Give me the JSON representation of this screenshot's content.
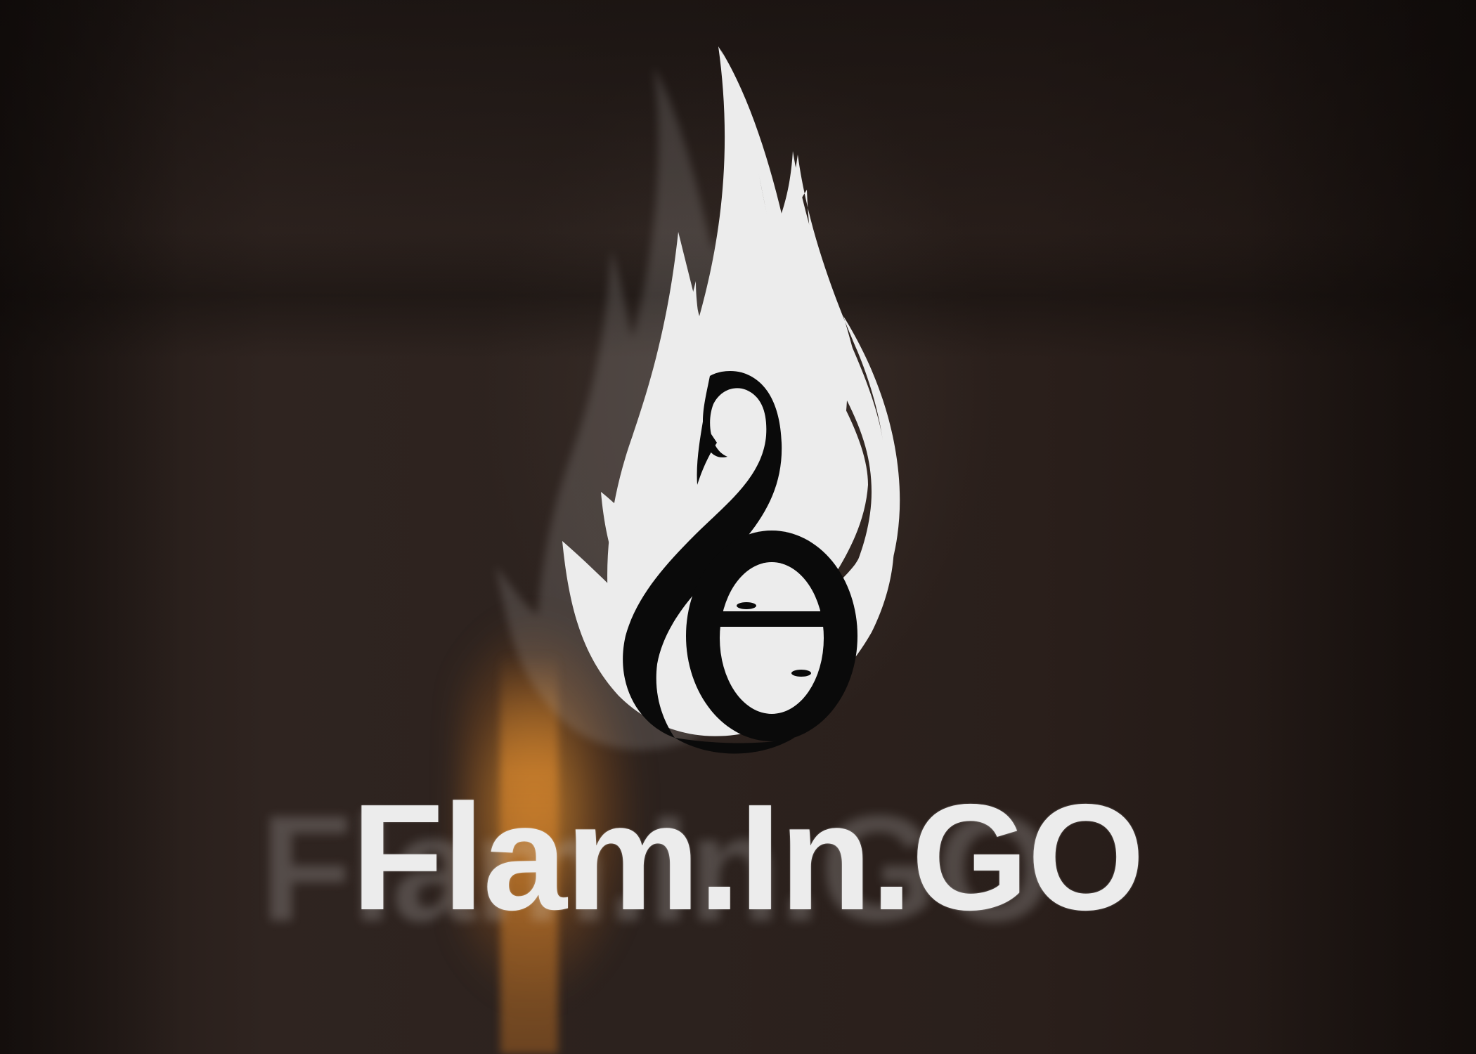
{
  "brand": {
    "name": "Flam.In.GO",
    "logo_icon": "flamingo-flame-icon",
    "colors": {
      "logo_fill": "#ececec",
      "logo_mark": "#0a0a0a",
      "background": "#2a211d",
      "glow": "#d68a2e"
    }
  }
}
